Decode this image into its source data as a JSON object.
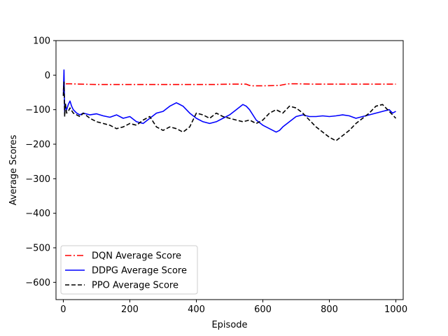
{
  "chart_data": {
    "type": "line",
    "title": "",
    "xlabel": "Episode",
    "ylabel": "Average Scores",
    "xlim": [
      -22,
      1022
    ],
    "ylim": [
      -650,
      100
    ],
    "xticks": [
      0,
      200,
      400,
      600,
      800,
      1000
    ],
    "xtick_labels": [
      "0",
      "200",
      "400",
      "600",
      "800",
      "1000"
    ],
    "yticks": [
      100,
      0,
      -100,
      -200,
      -300,
      -400,
      -500,
      -600
    ],
    "ytick_labels": [
      "100",
      "0",
      "−100",
      "−200",
      "−300",
      "−400",
      "−500",
      "−600"
    ],
    "grid": false,
    "legend_position": "lower-left",
    "series": [
      {
        "name": "DQN Average Score",
        "color": "#ff0000",
        "linestyle": "dashdot",
        "x": [
          0,
          2,
          5,
          10,
          20,
          50,
          100,
          150,
          200,
          250,
          300,
          350,
          400,
          450,
          500,
          550,
          560,
          570,
          600,
          650,
          670,
          680,
          700,
          750,
          800,
          850,
          900,
          950,
          1000
        ],
        "y": [
          -45,
          -20,
          -26,
          -25,
          -25,
          -26,
          -27,
          -27,
          -27,
          -27,
          -27,
          -27,
          -27,
          -27,
          -26,
          -26,
          -30,
          -31,
          -31,
          -30,
          -26,
          -25,
          -25,
          -26,
          -26,
          -26,
          -26,
          -26,
          -26
        ]
      },
      {
        "name": "DDPG Average Score",
        "color": "#0000ff",
        "linestyle": "solid",
        "x": [
          0,
          2,
          4,
          6,
          10,
          15,
          20,
          25,
          30,
          40,
          50,
          60,
          80,
          100,
          120,
          140,
          160,
          180,
          200,
          220,
          240,
          260,
          280,
          300,
          320,
          340,
          360,
          380,
          400,
          420,
          440,
          460,
          480,
          500,
          520,
          540,
          550,
          560,
          580,
          600,
          620,
          640,
          650,
          660,
          680,
          700,
          720,
          740,
          760,
          780,
          800,
          820,
          840,
          860,
          880,
          900,
          920,
          940,
          960,
          980,
          990,
          1000
        ],
        "y": [
          -60,
          15,
          -110,
          -90,
          -100,
          -85,
          -75,
          -90,
          -100,
          -110,
          -115,
          -110,
          -115,
          -112,
          -118,
          -122,
          -115,
          -125,
          -120,
          -135,
          -140,
          -125,
          -110,
          -105,
          -90,
          -80,
          -90,
          -110,
          -125,
          -135,
          -140,
          -135,
          -125,
          -115,
          -100,
          -85,
          -90,
          -100,
          -130,
          -145,
          -155,
          -165,
          -160,
          -150,
          -135,
          -120,
          -115,
          -120,
          -120,
          -118,
          -120,
          -118,
          -115,
          -118,
          -125,
          -120,
          -115,
          -110,
          -105,
          -100,
          -110,
          -105
        ]
      },
      {
        "name": "PPO Average Score",
        "color": "#000000",
        "linestyle": "dashed",
        "x": [
          0,
          2,
          4,
          6,
          10,
          15,
          20,
          30,
          40,
          50,
          60,
          80,
          100,
          120,
          140,
          160,
          180,
          200,
          220,
          240,
          260,
          280,
          300,
          320,
          340,
          360,
          380,
          400,
          420,
          440,
          460,
          480,
          500,
          520,
          540,
          560,
          580,
          600,
          620,
          640,
          660,
          680,
          700,
          720,
          740,
          760,
          780,
          800,
          820,
          840,
          860,
          880,
          900,
          920,
          940,
          960,
          980,
          1000
        ],
        "y": [
          -60,
          -20,
          -120,
          -80,
          -110,
          -105,
          -95,
          -110,
          -115,
          -120,
          -110,
          -125,
          -135,
          -140,
          -145,
          -155,
          -150,
          -140,
          -145,
          -130,
          -120,
          -150,
          -160,
          -150,
          -155,
          -165,
          -150,
          -110,
          -115,
          -125,
          -110,
          -120,
          -125,
          -130,
          -135,
          -130,
          -140,
          -130,
          -110,
          -100,
          -110,
          -90,
          -95,
          -110,
          -130,
          -150,
          -165,
          -180,
          -190,
          -175,
          -160,
          -140,
          -125,
          -110,
          -90,
          -85,
          -105,
          -125
        ]
      }
    ]
  }
}
